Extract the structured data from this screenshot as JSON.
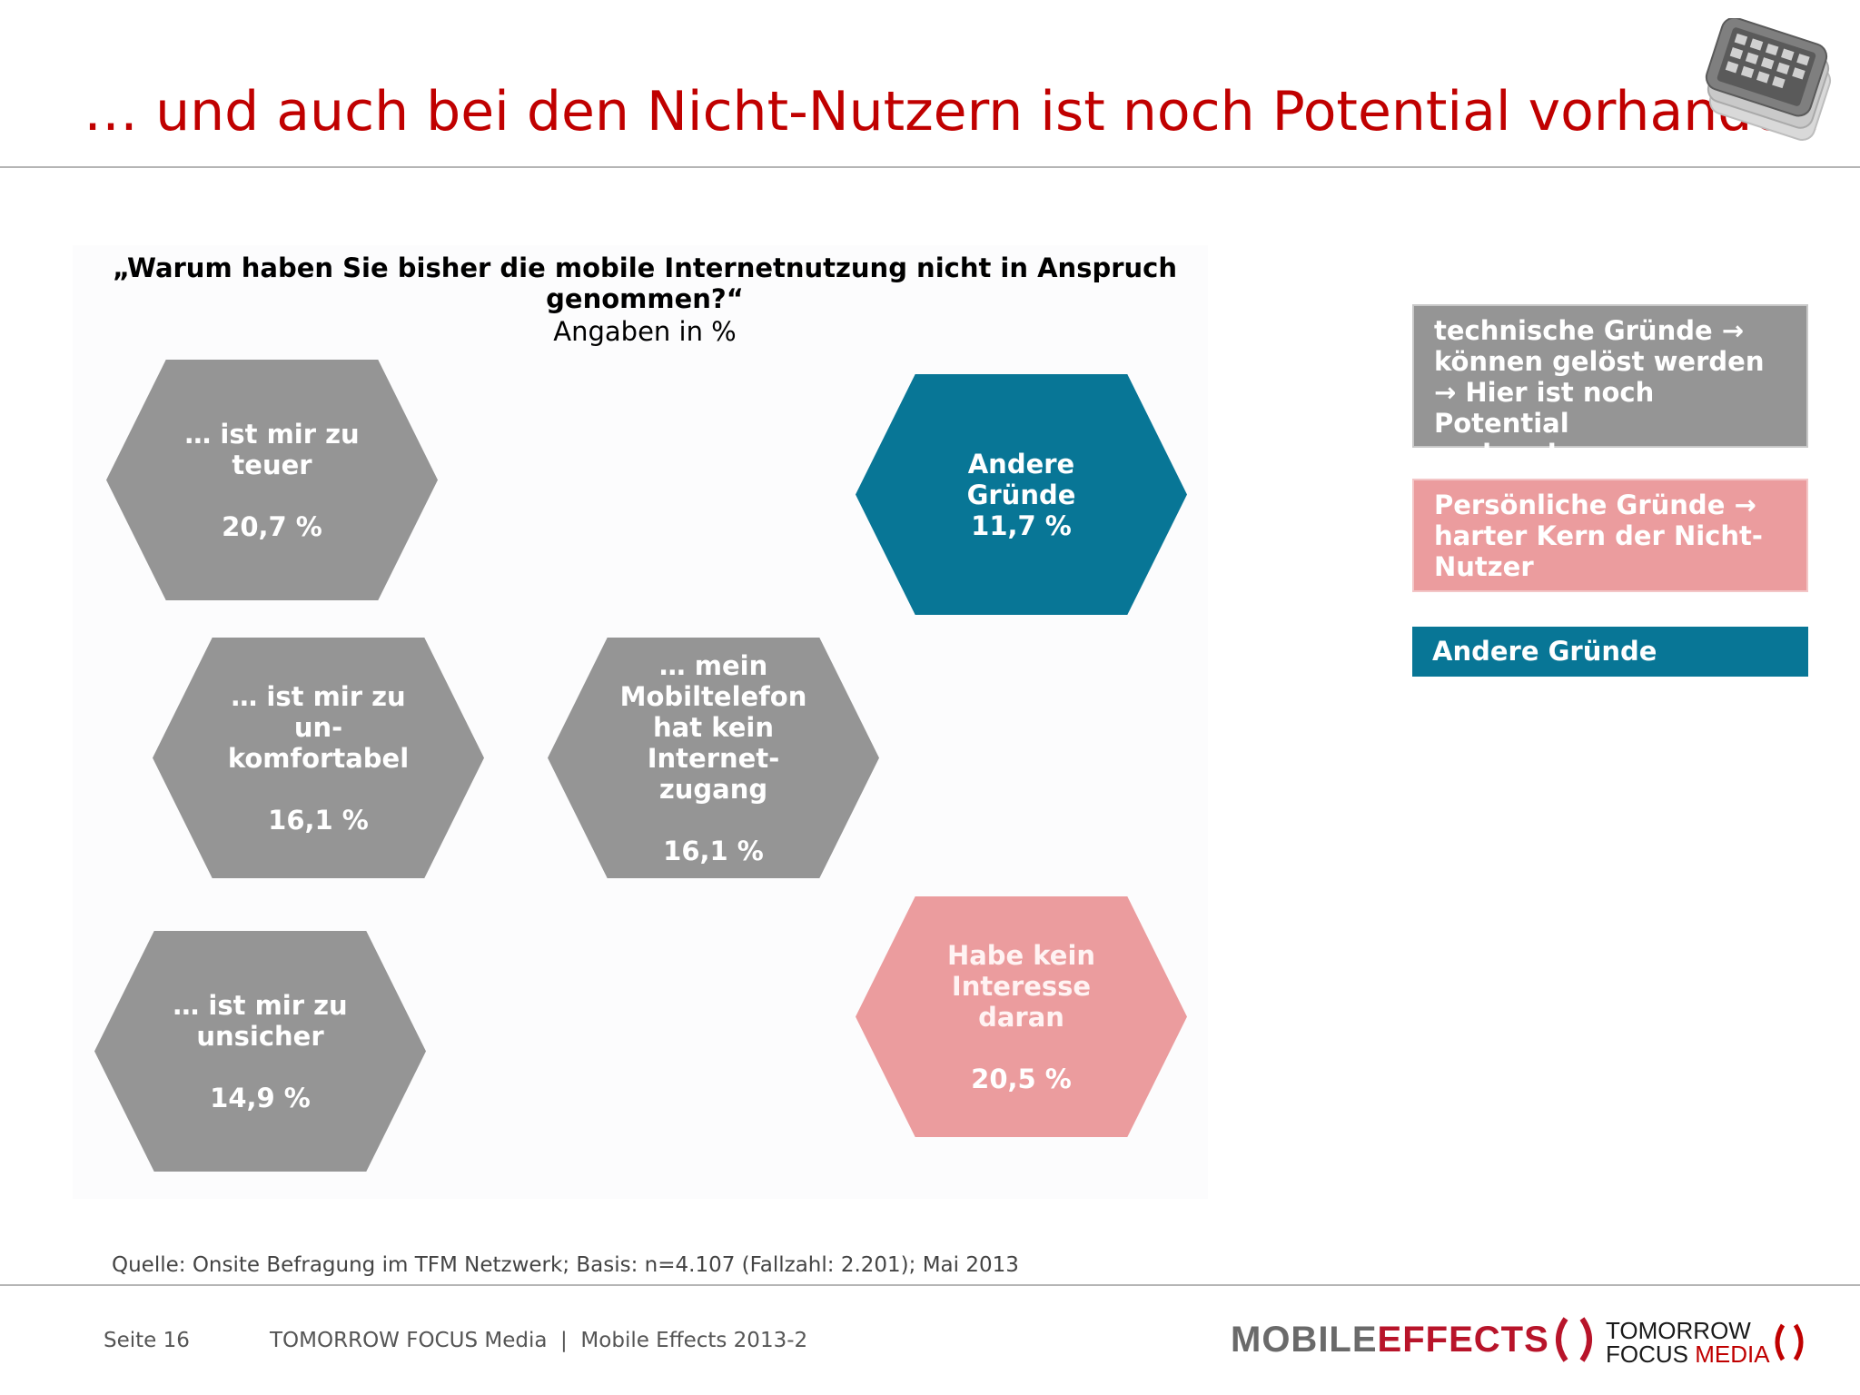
{
  "slide": {
    "title": "… und auch bei den Nicht-Nutzern ist noch Potential vorhanden",
    "question": "„Warum haben Sie bisher die mobile Internetnutzung nicht in Anspruch genommen?“",
    "question_sub": "Angaben in %"
  },
  "hexagons": [
    {
      "label": "… ist mir zu\nteuer",
      "value": "20,7 %",
      "category": "technisch",
      "color": "#959595"
    },
    {
      "label": "Andere\nGründe",
      "value": "11,7 %",
      "category": "andere",
      "color": "#087696"
    },
    {
      "label": "… ist mir zu\nun-\nkomfortabel",
      "value": "16,1 %",
      "category": "technisch",
      "color": "#959595"
    },
    {
      "label": "… mein\nMobiltelefon\nhat kein\nInternet-\nzugang",
      "value": "16,1 %",
      "category": "technisch",
      "color": "#959595"
    },
    {
      "label": "… ist mir zu\nunsicher",
      "value": "14,9 %",
      "category": "technisch",
      "color": "#959595"
    },
    {
      "label": "Habe kein\nInteresse\ndaran",
      "value": "20,5 %",
      "category": "persoenlich",
      "color": "#eb9c9e"
    }
  ],
  "legend": {
    "technical": "technische Gründe →\nkönnen gelöst werden\n→ Hier ist noch Potential\nvorhanden",
    "personal": "Persönliche Gründe →\nharter Kern der Nicht-\nNutzer",
    "other": "Andere Gründe"
  },
  "source": "Quelle: Onsite Befragung im TFM Netzwerk; Basis: n=4.107 (Fallzahl: 2.201); Mai 2013",
  "footer": {
    "page": "Seite 16",
    "text": "TOMORROW FOCUS Media  |  Mobile Effects 2013-2"
  },
  "logos": {
    "mobile_effects_1": "MOBILE",
    "mobile_effects_2": "EFFECTS",
    "tfm_line1": "TOMORROW",
    "tfm_line2a": "FOCUS ",
    "tfm_line2b": "MEDIA"
  },
  "colors": {
    "title_red": "#c00000",
    "gray": "#959595",
    "pink": "#eb9c9e",
    "blue": "#087696"
  },
  "icons": [
    "smartphone-stack-icon"
  ]
}
